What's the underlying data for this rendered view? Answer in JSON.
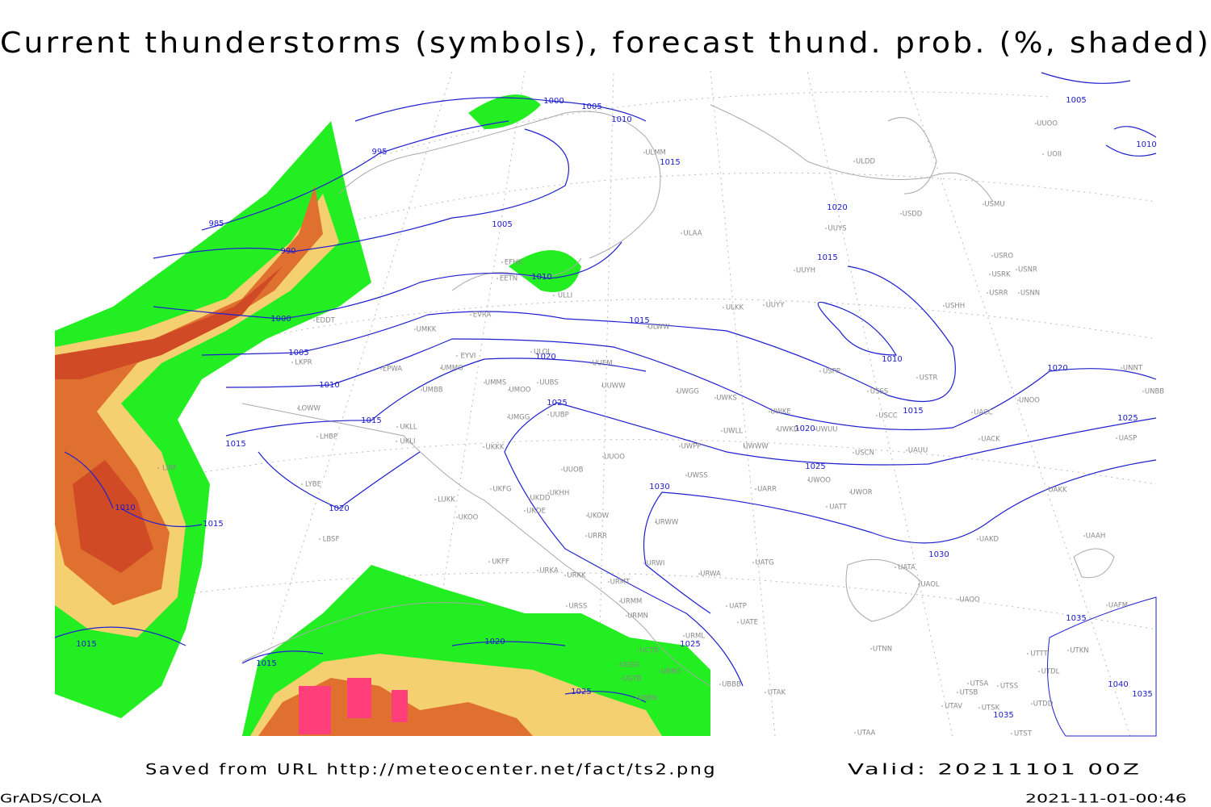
{
  "title": "Current thunderstorms (symbols), forecast thund. prob. (%, shaded)",
  "footer": {
    "saved": "Saved from URL http://meteocenter.net/fact/ts2.png",
    "valid": "Valid: 20211101 00Z"
  },
  "credit": "GrADS/COLA",
  "timestamp": "2021-11-01-00:46",
  "isobar_labels": [
    "1000",
    "1005",
    "1010",
    "995",
    "1015",
    "985",
    "1005",
    "1020",
    "990",
    "1015",
    "1010",
    "1000",
    "1015",
    "1005",
    "1010",
    "1020",
    "1010",
    "1020",
    "1025",
    "1015",
    "1015",
    "1025",
    "1020",
    "1015",
    "1025",
    "1030",
    "1010",
    "1020",
    "1015",
    "1030",
    "1035",
    "1015",
    "1020",
    "1025",
    "1015",
    "1040",
    "1025",
    "1035",
    "1035",
    "1005",
    "1010"
  ],
  "stations": [
    "EDDT",
    "EFHK",
    "EETN",
    "ULLI",
    "EVRA",
    "UMKK",
    "EYVI",
    "ULOL",
    "EPWA",
    "UMMG",
    "LKPR",
    "UMBB",
    "UMMS",
    "UMOO",
    "UUBS",
    "UUEM",
    "UUWW",
    "ULWW",
    "ULKK",
    "UUYY",
    "UUYH",
    "ULAA",
    "UUYS",
    "USDD",
    "ULDD",
    "ULMM",
    "USMU",
    "USRO",
    "USNR",
    "USRK",
    "USRR",
    "USNN",
    "USHH",
    "USPP",
    "USTR",
    "USSS",
    "UWGG",
    "UWKS",
    "UWKE",
    "UWKD",
    "UWUU",
    "USCC",
    "UACC",
    "UNOO",
    "UNNT",
    "UNBB",
    "UACK",
    "UASP",
    "USCN",
    "UAUU",
    "UWLL",
    "UWWW",
    "UWPP",
    "LOWW",
    "LHBP",
    "UKLL",
    "UKLI",
    "UMGG",
    "UUBP",
    "UKKK",
    "UUOO",
    "UUOB",
    "UWSS",
    "UARR",
    "UWOO",
    "UWOR",
    "UATT",
    "LYBE",
    "LUKK",
    "UKFG",
    "UKDD",
    "UKHH",
    "UKDE",
    "UKOO",
    "UKOW",
    "URWW",
    "URRR",
    "UAKD",
    "UAAH",
    "LBSF",
    "UKFF",
    "URKA",
    "URKK",
    "URWI",
    "UATG",
    "URWA",
    "URMT",
    "UATA",
    "UAOL",
    "UAOO",
    "URSS",
    "URMM",
    "URMN",
    "UATP",
    "UATE",
    "UAFM",
    "URML",
    "UCTB",
    "UTNN",
    "UTKN",
    "UTTT",
    "UTDL",
    "UBBG",
    "UGSG",
    "UBBB",
    "UGTB",
    "UTAK",
    "UTSB",
    "UTSA",
    "UTSS",
    "UTDD",
    "UBBN",
    "UTAV",
    "UTSK",
    "UTST",
    "UTAA",
    "UUOO",
    "UOII",
    "LIRF",
    "UAKK"
  ]
}
